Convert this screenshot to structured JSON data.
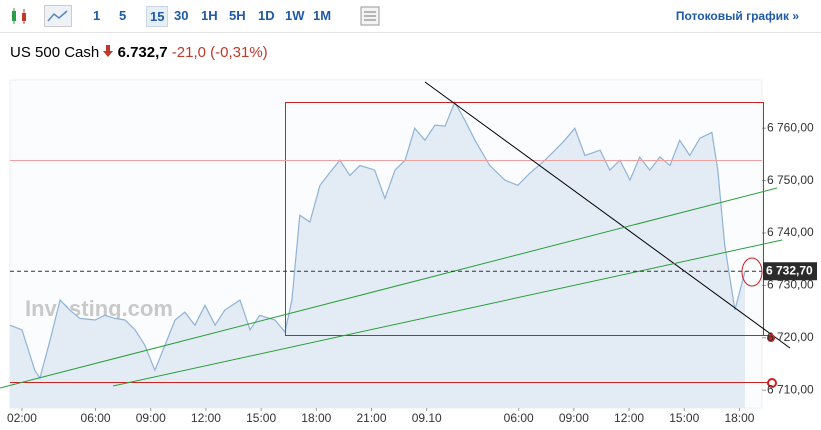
{
  "toolbar": {
    "intervals": [
      "1",
      "5",
      "15",
      "30",
      "1H",
      "5H",
      "1D",
      "1W",
      "1M"
    ],
    "active_interval": "15",
    "stream_link": "Потоковый график »"
  },
  "header": {
    "instrument": "US 500 Cash",
    "price": "6.732,7",
    "change": "-21,0",
    "change_percent": "(-0,31%)"
  },
  "chart_data": {
    "type": "area",
    "watermark": "Investing.com",
    "color": "#8fb3d6",
    "fill": "#e3ecf5",
    "x": [
      -2.6,
      0,
      2.8,
      3.9,
      6.1,
      8.3,
      10.4,
      12.6,
      15.9,
      18.0,
      20.2,
      22.4,
      24.6,
      26.7,
      28.9,
      31.1,
      33.3,
      35.4,
      37.6,
      39.8,
      42.0,
      44.1,
      47.4,
      49.6,
      51.7,
      55.0,
      57.2,
      58.7,
      60.4,
      62.6,
      64.8,
      67.0,
      69.1,
      71.3,
      73.5,
      76.7,
      78.9,
      81.1,
      83.3,
      85.4,
      87.6,
      89.8,
      92.0,
      94.1,
      96.3,
      98.5,
      101.7,
      105.0,
      107.8,
      110.4,
      113.7,
      115.9,
      118.0,
      120.2,
      122.4,
      125.7,
      127.8,
      130.0,
      132.2,
      134.3,
      136.5,
      138.7,
      140.9,
      143.0,
      145.2,
      147.4,
      150.0,
      151.3,
      152.8,
      155.0,
      157.2
    ],
    "values": [
      6722.4,
      6721.5,
      6713.8,
      6712.3,
      6719.5,
      6727.2,
      6725.3,
      6723.7,
      6723.4,
      6724.3,
      6723.7,
      6723.4,
      6721.5,
      6718.6,
      6713.8,
      6718.6,
      6723.4,
      6724.9,
      6722.4,
      6726.2,
      6722.4,
      6725.3,
      6727.2,
      6721.5,
      6724.3,
      6723.4,
      6721.1,
      6727.2,
      6743.4,
      6742.1,
      6749.1,
      6751.6,
      6753.9,
      6751.0,
      6752.9,
      6752.0,
      6746.6,
      6752.0,
      6753.9,
      6760.0,
      6757.7,
      6760.6,
      6760.4,
      6765.0,
      6761.5,
      6757.7,
      6752.9,
      6750.1,
      6749.1,
      6751.4,
      6753.9,
      6755.8,
      6757.7,
      6760.0,
      6754.8,
      6755.8,
      6752.0,
      6753.9,
      6750.1,
      6754.5,
      6752.0,
      6754.5,
      6752.9,
      6757.7,
      6754.8,
      6758.1,
      6759.2,
      6752.0,
      6737.7,
      6725.3,
      6732.7
    ],
    "xlim": [
      -2.6,
      160.9
    ],
    "xticks": [
      {
        "value": 0,
        "label": "02:00"
      },
      {
        "value": 16,
        "label": "06:00"
      },
      {
        "value": 28,
        "label": "09:00"
      },
      {
        "value": 40,
        "label": "12:00"
      },
      {
        "value": 52,
        "label": "15:00"
      },
      {
        "value": 64,
        "label": "18:00"
      },
      {
        "value": 76,
        "label": "21:00"
      },
      {
        "value": 88,
        "label": "09.10"
      },
      {
        "value": 108,
        "label": "06:00"
      },
      {
        "value": 120,
        "label": "09:00"
      },
      {
        "value": 132,
        "label": "12:00"
      },
      {
        "value": 144,
        "label": "15:00"
      },
      {
        "value": 156,
        "label": "18:00"
      }
    ],
    "ylim": [
      6706.6,
      6769.2
    ],
    "yticks": [
      {
        "value": 6710,
        "label": "6 710,00"
      },
      {
        "value": 6720,
        "label": "6 720,00"
      },
      {
        "value": 6730,
        "label": "6 730,00"
      },
      {
        "value": 6740,
        "label": "6 740,00"
      },
      {
        "value": 6750,
        "label": "6 750,00"
      },
      {
        "value": 6760,
        "label": "6 760,00"
      }
    ],
    "last_price": {
      "value": 6732.7,
      "label": "6 732,70"
    }
  }
}
